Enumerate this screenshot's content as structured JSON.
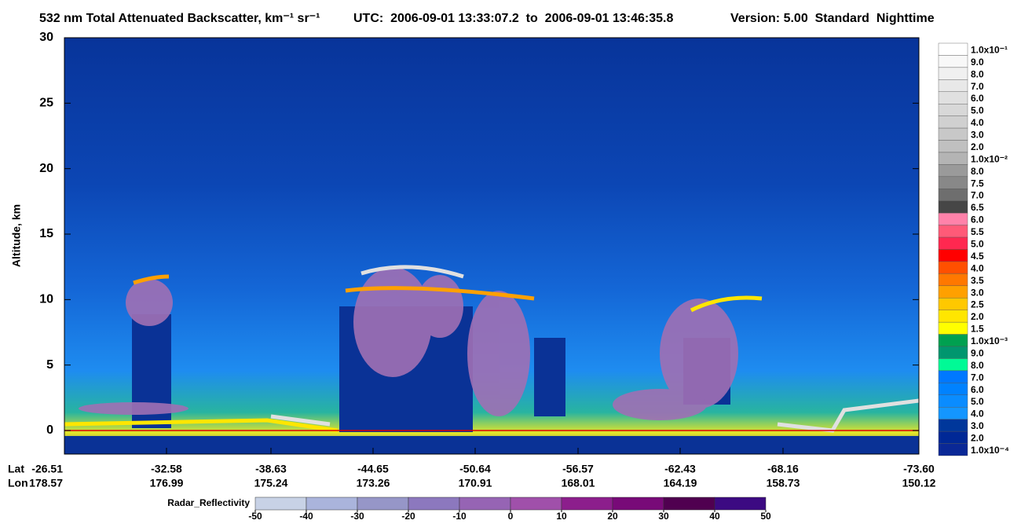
{
  "chart_data": {
    "type": "heatmap",
    "title": "532 nm Total Attenuated Backscatter, km⁻¹ sr⁻¹",
    "utc": "UTC:  2006-09-01 13:33:07.2  to  2006-09-01 13:46:35.8",
    "version": "Version: 5.00  Standard  Nighttime",
    "ylabel": "Altitude, km",
    "ylim": [
      -1.8,
      30
    ],
    "yticks": [
      0,
      5,
      10,
      15,
      20,
      25,
      30
    ],
    "lat_label": "Lat",
    "lon_label": "Lon",
    "lat": [
      "-26.51",
      "-32.58",
      "-38.63",
      "-44.65",
      "-50.64",
      "-56.57",
      "-62.43",
      "-68.16",
      "-73.60"
    ],
    "lon": [
      "178.57",
      "176.99",
      "175.24",
      "173.26",
      "170.91",
      "168.01",
      "164.19",
      "158.73",
      "150.12"
    ],
    "colorbar": {
      "labels": [
        "1.0x10⁻¹",
        "9.0",
        "8.0",
        "7.0",
        "6.0",
        "5.0",
        "4.0",
        "3.0",
        "2.0",
        "1.0x10⁻²",
        "8.0",
        "7.5",
        "7.0",
        "6.5",
        "6.0",
        "5.5",
        "5.0",
        "4.5",
        "4.0",
        "3.5",
        "3.0",
        "2.5",
        "2.0",
        "1.5",
        "1.0x10⁻³",
        "9.0",
        "8.0",
        "7.0",
        "6.0",
        "5.0",
        "4.0",
        "3.0",
        "2.0",
        "1.0x10⁻⁴"
      ],
      "colors": [
        "#ffffff",
        "#f8f8f8",
        "#f0f0f0",
        "#e8e8e8",
        "#e0e0e0",
        "#d8d8d8",
        "#d0d0d0",
        "#c8c8c8",
        "#c0c0c0",
        "#b4b4b4",
        "#9a9a9a",
        "#888888",
        "#6e6e6e",
        "#464646",
        "#ff82aa",
        "#ff5a78",
        "#ff2850",
        "#ff0000",
        "#ff5000",
        "#ff7800",
        "#ffa000",
        "#ffc800",
        "#ffe600",
        "#ffff00",
        "#00a050",
        "#00966e",
        "#00fa96",
        "#0078ff",
        "#0082ff",
        "#0a8cff",
        "#1496ff",
        "#00379b",
        "#002896",
        "#0a2896"
      ]
    },
    "radar": {
      "label": "Radar_Reflectivity",
      "lim": [
        -50,
        50
      ],
      "ticks": [
        -50,
        -40,
        -30,
        -20,
        -10,
        0,
        10,
        20,
        30,
        40,
        50
      ],
      "colors": [
        "#c8d2e6",
        "#aab4dc",
        "#9696c8",
        "#8c78be",
        "#9664b4",
        "#a050aa",
        "#8c1e8c",
        "#780a78",
        "#500050",
        "#3c0a82"
      ]
    }
  }
}
